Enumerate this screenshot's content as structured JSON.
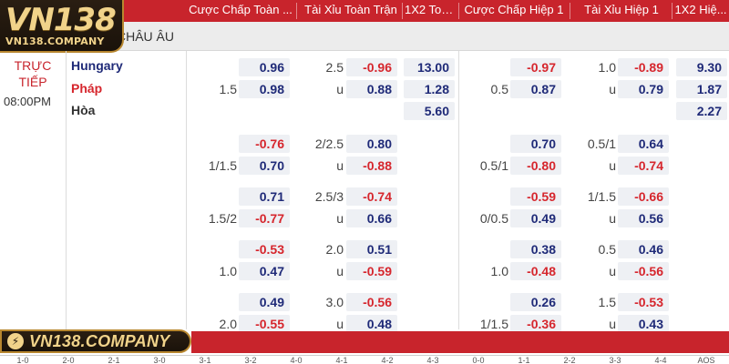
{
  "header": {
    "columns": [
      "Cược Chấp Toàn ...",
      "Tài Xỉu Toàn Trận",
      "1X2 Toà...",
      "Cược Chấp Hiệp 1",
      "Tài Xỉu Hiệp 1",
      "1X2 Hiệ..."
    ]
  },
  "logo": {
    "main": "VN138",
    "sub": "VN138.COMPANY"
  },
  "league": {
    "name": "H CHÂU ÂU"
  },
  "match": {
    "status_line1": "TRỰC",
    "status_line2": "TIẾP",
    "time": "08:00PM",
    "teams": [
      "Hungary",
      "Pháp",
      "Hòa"
    ],
    "team_colors": [
      "#1f2a78",
      "#d6262d",
      "#333333"
    ]
  },
  "odds_rows": [
    {
      "ft_hcap": {
        "line": "1.5",
        "home": "0.96",
        "away": "0.98"
      },
      "ft_ou": {
        "line_top": "2.5",
        "line_bottom": "u",
        "over": "-0.96",
        "under": "0.88"
      },
      "ft_1x2": {
        "home": "13.00",
        "away": "1.28",
        "draw": "5.60"
      },
      "h1_hcap": {
        "line": "0.5",
        "home": "-0.97",
        "away": "0.87"
      },
      "h1_ou": {
        "line_top": "1.0",
        "line_bottom": "u",
        "over": "-0.89",
        "under": "0.79"
      },
      "h1_1x2": {
        "home": "9.30",
        "away": "1.87",
        "draw": "2.27"
      }
    },
    {
      "ft_hcap": {
        "line": "1/1.5",
        "home": "-0.76",
        "away": "0.70"
      },
      "ft_ou": {
        "line_top": "2/2.5",
        "line_bottom": "u",
        "over": "0.80",
        "under": "-0.88"
      },
      "h1_hcap": {
        "line": "0.5/1",
        "home": "0.70",
        "away": "-0.80"
      },
      "h1_ou": {
        "line_top": "0.5/1",
        "line_bottom": "u",
        "over": "0.64",
        "under": "-0.74"
      }
    },
    {
      "ft_hcap": {
        "line": "1.5/2",
        "home": "0.71",
        "away": "-0.77"
      },
      "ft_ou": {
        "line_top": "2.5/3",
        "line_bottom": "u",
        "over": "-0.74",
        "under": "0.66"
      },
      "h1_hcap": {
        "line": "0/0.5",
        "home": "-0.59",
        "away": "0.49"
      },
      "h1_ou": {
        "line_top": "1/1.5",
        "line_bottom": "u",
        "over": "-0.66",
        "under": "0.56"
      }
    },
    {
      "ft_hcap": {
        "line": "1.0",
        "home": "-0.53",
        "away": "0.47"
      },
      "ft_ou": {
        "line_top": "2.0",
        "line_bottom": "u",
        "over": "0.51",
        "under": "-0.59"
      },
      "h1_hcap": {
        "line": "1.0",
        "home": "0.38",
        "away": "-0.48"
      },
      "h1_ou": {
        "line_top": "0.5",
        "line_bottom": "u",
        "over": "0.46",
        "under": "-0.56"
      }
    },
    {
      "ft_hcap": {
        "line": "2.0",
        "home": "0.49",
        "away": "-0.55"
      },
      "ft_ou": {
        "line_top": "3.0",
        "line_bottom": "u",
        "over": "-0.56",
        "under": "0.48"
      },
      "h1_hcap": {
        "line": "1/1.5",
        "home": "0.26",
        "away": "-0.36"
      },
      "h1_ou": {
        "line_top": "1.5",
        "line_bottom": "u",
        "over": "-0.53",
        "under": "0.43"
      }
    }
  ],
  "banner": {
    "text": "VN138.COMPANY"
  },
  "scores": [
    "1-0",
    "2-0",
    "2-1",
    "3-0",
    "3-1",
    "3-2",
    "4-0",
    "4-1",
    "4-2",
    "4-3",
    "0-0",
    "1-1",
    "2-2",
    "3-3",
    "4-4",
    "AOS"
  ],
  "colors": {
    "header_red": "#c8242c",
    "positive": "#1f2a78",
    "negative": "#d6262d",
    "gold": "#f1d38a"
  }
}
